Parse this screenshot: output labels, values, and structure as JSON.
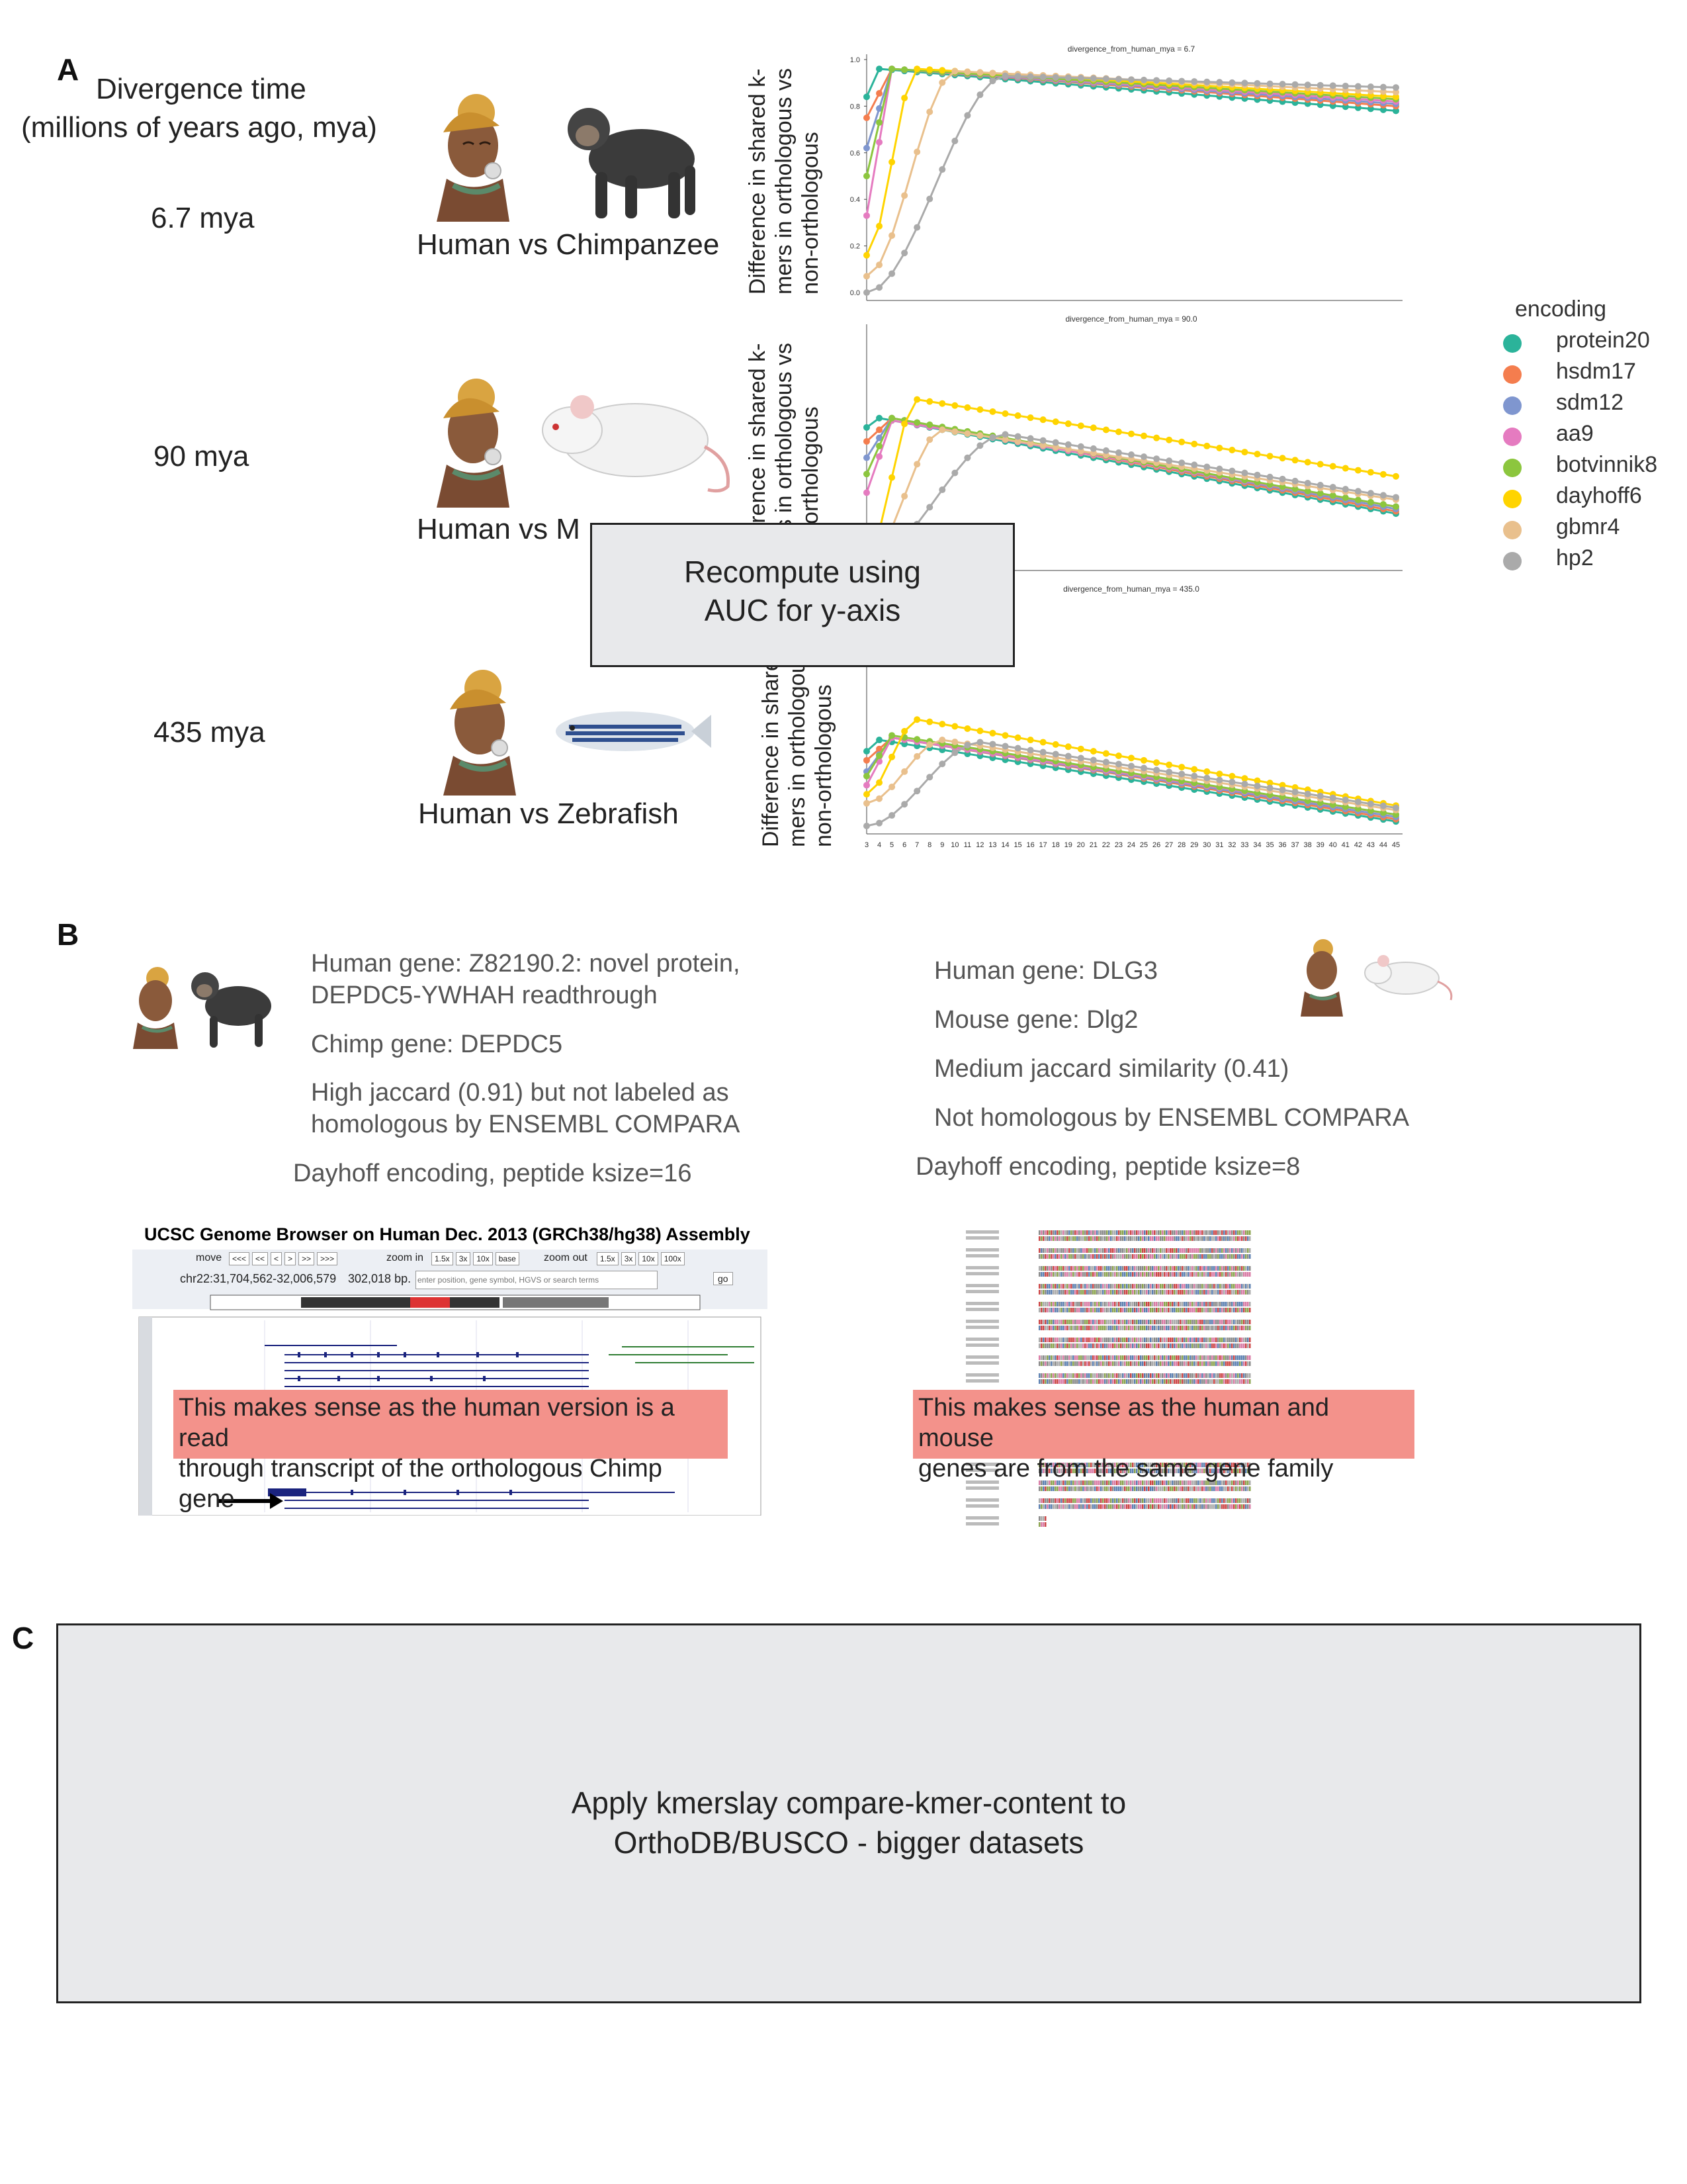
{
  "panel_a": {
    "letter": "A",
    "header_line1": "Divergence time",
    "header_line2": "(millions of years ago, mya)",
    "rows": [
      {
        "mya_label": "6.7 mya",
        "species_label": "Human vs Chimpanzee"
      },
      {
        "mya_label": "90 mya",
        "species_label": "Human  vs  M"
      },
      {
        "mya_label": "435 mya",
        "species_label": "Human  vs  Zebrafish"
      }
    ],
    "ylabel_lines": [
      "Difference in shared k-",
      "mers in orthologous vs",
      "non-orthologous"
    ],
    "overlay_box": [
      "Recompute using",
      "AUC for y-axis"
    ],
    "legend": {
      "title": "encoding",
      "items": [
        {
          "name": "protein20",
          "color": "#2bb39a"
        },
        {
          "name": "hsdm17",
          "color": "#f47d4e"
        },
        {
          "name": "sdm12",
          "color": "#7f96cf"
        },
        {
          "name": "aa9",
          "color": "#e57bc0"
        },
        {
          "name": "botvinnik8",
          "color": "#8cc63e"
        },
        {
          "name": "dayhoff6",
          "color": "#ffd400"
        },
        {
          "name": "gbmr4",
          "color": "#e9c08d"
        },
        {
          "name": "hp2",
          "color": "#aaaaaa"
        }
      ]
    }
  },
  "chart_data": [
    {
      "type": "line",
      "title": "divergence_from_human_mya = 6.7",
      "x": [
        3,
        4,
        5,
        6,
        7,
        8,
        9,
        10,
        11,
        12,
        13,
        14,
        15,
        16,
        17,
        18,
        19,
        20,
        21,
        22,
        23,
        24,
        25,
        26,
        27,
        28,
        29,
        30,
        31,
        32,
        33,
        34,
        35,
        36,
        37,
        38,
        39,
        40,
        41,
        42,
        43,
        44,
        45
      ],
      "yticks": [
        "0.0",
        "0.2",
        "0.4",
        "0.6",
        "0.8",
        "1.0"
      ],
      "ylim": [
        0,
        1.0
      ],
      "series": [
        {
          "name": "protein20",
          "peak_x": 4,
          "start": 0.84,
          "peak": 0.96,
          "end": 0.78
        },
        {
          "name": "hsdm17",
          "peak_x": 5,
          "start": 0.75,
          "peak": 0.96,
          "end": 0.8
        },
        {
          "name": "sdm12",
          "peak_x": 5,
          "start": 0.62,
          "peak": 0.96,
          "end": 0.81
        },
        {
          "name": "aa9",
          "peak_x": 5,
          "start": 0.33,
          "peak": 0.96,
          "end": 0.82
        },
        {
          "name": "botvinnik8",
          "peak_x": 5,
          "start": 0.5,
          "peak": 0.96,
          "end": 0.83
        },
        {
          "name": "dayhoff6",
          "peak_x": 7,
          "start": 0.16,
          "peak": 0.96,
          "end": 0.84
        },
        {
          "name": "gbmr4",
          "peak_x": 10,
          "start": 0.07,
          "peak": 0.95,
          "end": 0.86
        },
        {
          "name": "hp2",
          "peak_x": 14,
          "start": 0.0,
          "peak": 0.93,
          "end": 0.88
        }
      ]
    },
    {
      "type": "line",
      "title": "divergence_from_human_mya = 90.0",
      "x": [
        3,
        4,
        5,
        6,
        7,
        8,
        9,
        10,
        11,
        12,
        13,
        14,
        15,
        16,
        17,
        18,
        19,
        20,
        21,
        22,
        23,
        24,
        25,
        26,
        27,
        28,
        29,
        30,
        31,
        32,
        33,
        34,
        35,
        36,
        37,
        38,
        39,
        40,
        41,
        42,
        43,
        44,
        45
      ],
      "ylim": [
        0,
        1.0
      ],
      "series": [
        {
          "name": "protein20",
          "peak_x": 4,
          "start": 0.58,
          "peak": 0.62,
          "end": 0.21
        },
        {
          "name": "hsdm17",
          "peak_x": 5,
          "start": 0.52,
          "peak": 0.62,
          "end": 0.22
        },
        {
          "name": "sdm12",
          "peak_x": 5,
          "start": 0.45,
          "peak": 0.62,
          "end": 0.23
        },
        {
          "name": "aa9",
          "peak_x": 5,
          "start": 0.3,
          "peak": 0.61,
          "end": 0.24
        },
        {
          "name": "botvinnik8",
          "peak_x": 5,
          "start": 0.38,
          "peak": 0.62,
          "end": 0.24
        },
        {
          "name": "dayhoff6",
          "peak_x": 7,
          "start": 0.03,
          "peak": 0.7,
          "end": 0.37
        },
        {
          "name": "gbmr4",
          "peak_x": 9,
          "start": 0.0,
          "peak": 0.57,
          "end": 0.27
        },
        {
          "name": "hp2",
          "peak_x": 14,
          "start": 0.0,
          "peak": 0.55,
          "end": 0.28
        }
      ]
    },
    {
      "type": "line",
      "title": "divergence_from_human_mya = 435.0",
      "x": [
        3,
        4,
        5,
        6,
        7,
        8,
        9,
        10,
        11,
        12,
        13,
        14,
        15,
        16,
        17,
        18,
        19,
        20,
        21,
        22,
        23,
        24,
        25,
        26,
        27,
        28,
        29,
        30,
        31,
        32,
        33,
        34,
        35,
        36,
        37,
        38,
        39,
        40,
        41,
        42,
        43,
        44,
        45
      ],
      "xtick_labels": [
        "3",
        "4",
        "5",
        "6",
        "7",
        "8",
        "9",
        "10",
        "11",
        "12",
        "13",
        "14",
        "15",
        "16",
        "17",
        "18",
        "19",
        "20",
        "21",
        "22",
        "23",
        "24",
        "25",
        "26",
        "27",
        "28",
        "29",
        "30",
        "31",
        "32",
        "33",
        "34",
        "35",
        "36",
        "37",
        "38",
        "39",
        "40",
        "41",
        "42",
        "43",
        "44",
        "45"
      ],
      "ylim": [
        0,
        1.0
      ],
      "series": [
        {
          "name": "protein20",
          "peak_x": 4,
          "start": 0.33,
          "peak": 0.38,
          "end": 0.02
        },
        {
          "name": "hsdm17",
          "peak_x": 5,
          "start": 0.29,
          "peak": 0.39,
          "end": 0.03
        },
        {
          "name": "sdm12",
          "peak_x": 5,
          "start": 0.24,
          "peak": 0.39,
          "end": 0.04
        },
        {
          "name": "aa9",
          "peak_x": 5,
          "start": 0.18,
          "peak": 0.39,
          "end": 0.05
        },
        {
          "name": "botvinnik8",
          "peak_x": 5,
          "start": 0.22,
          "peak": 0.4,
          "end": 0.05
        },
        {
          "name": "dayhoff6",
          "peak_x": 7,
          "start": 0.14,
          "peak": 0.47,
          "end": 0.09
        },
        {
          "name": "gbmr4",
          "peak_x": 9,
          "start": 0.1,
          "peak": 0.38,
          "end": 0.07
        },
        {
          "name": "hp2",
          "peak_x": 12,
          "start": 0.0,
          "peak": 0.37,
          "end": 0.08
        }
      ]
    }
  ],
  "panel_b": {
    "letter": "B",
    "left": {
      "human_gene_line1": "Human gene: Z82190.2: novel protein,",
      "human_gene_line2": "DEPDC5-YWHAH readthrough",
      "chimp_gene": "Chimp gene: DEPDC5",
      "jaccard_line1": "High jaccard (0.91) but not labeled as",
      "jaccard_line2": "homologous by ENSEMBL COMPARA",
      "encoding": "Dayhoff encoding, peptide ksize=16",
      "browser_title": "UCSC Genome Browser on Human Dec. 2013 (GRCh38/hg38) Assembly",
      "browser_position": "chr22:31,704,562-32,006,579",
      "browser_size": "302,018 bp.",
      "browser_search_placeholder": "enter position, gene symbol, HGVS or search terms",
      "browser_go": "go",
      "browser_move": "move",
      "browser_zoom_in": "zoom in",
      "browser_zoom_out": "zoom out",
      "move_buttons": [
        "<<<",
        "<<",
        "<",
        ">",
        ">>",
        ">>>"
      ],
      "zoom_in_buttons": [
        "1.5x",
        "3x",
        "10x",
        "base"
      ],
      "zoom_out_buttons": [
        "1.5x",
        "3x",
        "10x",
        "100x"
      ],
      "pink_note_line1": "This makes sense as the human version is a read",
      "pink_note_line2": "through transcript of the orthologous Chimp gene"
    },
    "right": {
      "human_gene": "Human gene: DLG3",
      "mouse_gene": "Mouse gene: Dlg2",
      "jaccard": "Medium jaccard similarity (0.41)",
      "compara": "Not homologous by ENSEMBL COMPARA",
      "encoding": "Dayhoff encoding, peptide ksize=8",
      "pink_note_line1": "This makes sense as the human and mouse",
      "pink_note_line2": "genes are from the same gene family"
    }
  },
  "panel_c": {
    "letter": "C",
    "box_line1": "Apply kmerslay compare-kmer-content to",
    "box_line2": "OrthoDB/BUSCO - bigger datasets"
  }
}
